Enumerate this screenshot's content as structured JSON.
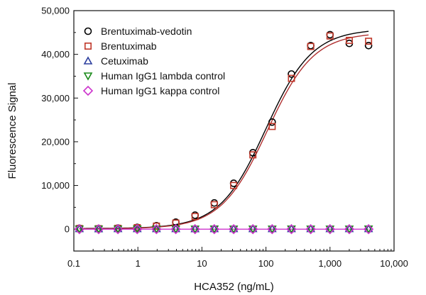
{
  "chart_data": {
    "type": "scatter",
    "xlabel": "HCA352 (ng/mL)",
    "ylabel": "Fluorescence Signal",
    "x_scale": "log",
    "xlim": [
      0.1,
      10000
    ],
    "ylim": [
      -5000,
      50000
    ],
    "x_ticks": [
      0.1,
      1,
      10,
      100,
      1000,
      10000
    ],
    "x_tick_labels": [
      "0.1",
      "1",
      "10",
      "100",
      "1,000",
      "10,000"
    ],
    "y_ticks": [
      0,
      10000,
      20000,
      30000,
      40000,
      50000
    ],
    "y_tick_labels": [
      "0",
      "10,000",
      "20,000",
      "30,000",
      "40,000",
      "50,000"
    ],
    "legend_position": "top-left",
    "x": [
      0.122,
      0.244,
      0.488,
      0.977,
      1.95,
      3.91,
      7.81,
      15.6,
      31.3,
      62.5,
      125,
      250,
      500,
      1000,
      2000,
      4000
    ],
    "series": [
      {
        "name": "Brentuximab-vedotin",
        "marker": "circle",
        "color": "#000000",
        "values": [
          200,
          150,
          250,
          400,
          800,
          1600,
          3200,
          6000,
          10500,
          17500,
          24500,
          35500,
          42000,
          44500,
          42500,
          42000
        ],
        "fit": {
          "bottom": 150,
          "top": 45800,
          "ec50": 100,
          "hill": 1.2,
          "color": "#000000"
        }
      },
      {
        "name": "Brentuximab",
        "marker": "square",
        "color": "#c0392b",
        "values": [
          150,
          100,
          200,
          350,
          700,
          1400,
          2900,
          5600,
          10000,
          17000,
          23500,
          34500,
          41800,
          44200,
          43200,
          43000
        ],
        "fit": {
          "bottom": 100,
          "top": 45000,
          "ec50": 105,
          "hill": 1.2,
          "color": "#b03030"
        }
      },
      {
        "name": "Cetuximab",
        "marker": "triangle-up",
        "color": "#2c3e9e",
        "values": [
          100,
          80,
          90,
          100,
          90,
          100,
          80,
          100,
          90,
          100,
          90,
          100,
          90,
          100,
          90,
          100
        ]
      },
      {
        "name": "Human IgG1 lambda control",
        "marker": "triangle-down",
        "color": "#1a8a1a",
        "values": [
          50,
          40,
          50,
          60,
          50,
          40,
          50,
          60,
          50,
          40,
          50,
          60,
          50,
          40,
          50,
          60
        ]
      },
      {
        "name": "Human IgG1 kappa control",
        "marker": "diamond",
        "color": "#cc33cc",
        "values": [
          0,
          0,
          0,
          0,
          0,
          0,
          0,
          0,
          0,
          0,
          0,
          0,
          0,
          0,
          0,
          0
        ],
        "flat_line_color": "#cc33cc"
      }
    ]
  }
}
